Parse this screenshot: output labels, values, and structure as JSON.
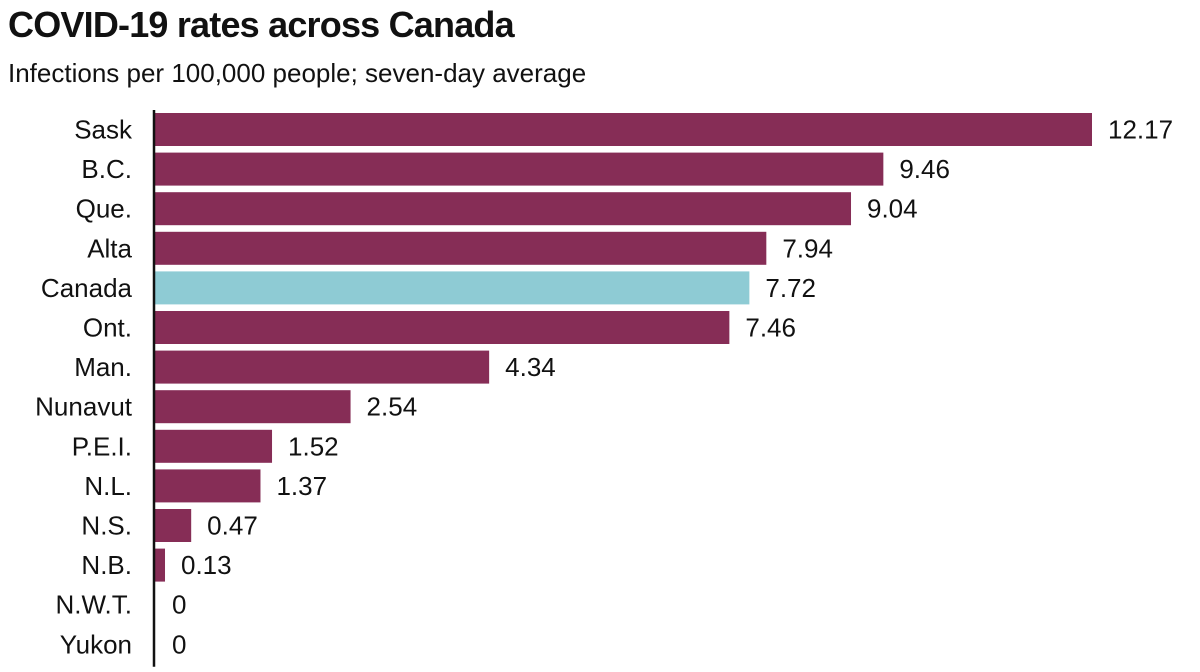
{
  "chart_data": {
    "type": "bar",
    "orientation": "horizontal",
    "title": "COVID-19 rates across Canada",
    "subtitle": "Infections per 100,000 people; seven-day average",
    "categories": [
      "Sask",
      "B.C.",
      "Que.",
      "Alta",
      "Canada",
      "Ont.",
      "Man.",
      "Nunavut",
      "P.E.I.",
      "N.L.",
      "N.S.",
      "N.B.",
      "N.W.T.",
      "Yukon"
    ],
    "values": [
      12.17,
      9.46,
      9.04,
      7.94,
      7.72,
      7.46,
      4.34,
      2.54,
      1.52,
      1.37,
      0.47,
      0.13,
      0,
      0
    ],
    "value_labels": [
      "12.17",
      "9.46",
      "9.04",
      "7.94",
      "7.72",
      "7.46",
      "4.34",
      "2.54",
      "1.52",
      "1.37",
      "0.47",
      "0.13",
      "0",
      "0"
    ],
    "highlight_category": "Canada",
    "xlim": [
      0,
      12.17
    ],
    "grid": false,
    "xlabel": "",
    "ylabel": ""
  },
  "colors": {
    "bar": "#862d56",
    "highlight": "#8ecbd4",
    "axis": "#111111"
  }
}
